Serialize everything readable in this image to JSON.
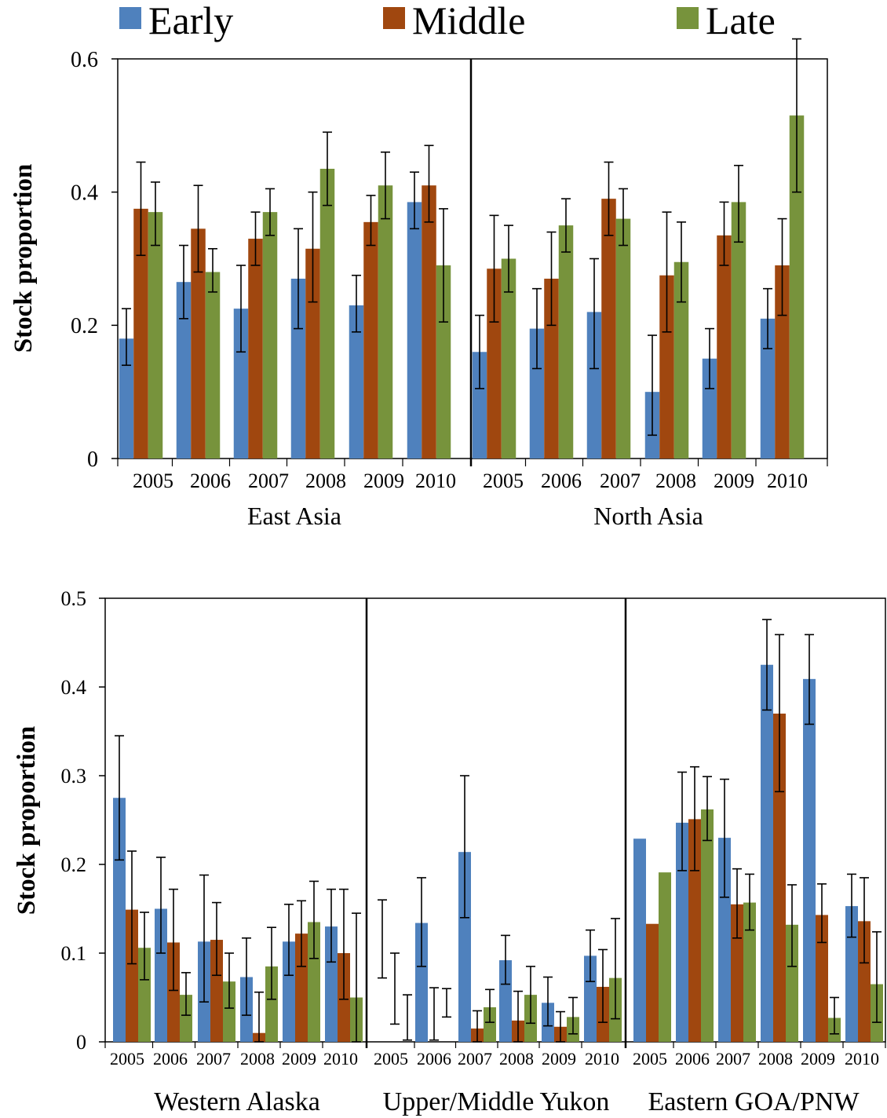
{
  "legend": [
    {
      "name": "Early",
      "color": "#4F81BD"
    },
    {
      "name": "Middle",
      "color": "#A0470F"
    },
    {
      "name": "Late",
      "color": "#77933C"
    }
  ],
  "chart_data": [
    {
      "type": "bar",
      "ylabel": "Stock proportion",
      "ylim": [
        0,
        0.6
      ],
      "yticks": [
        "0",
        "0.2",
        "0.4",
        "0.6"
      ],
      "grid": false,
      "legend_position": "top",
      "groups": [
        {
          "label": "East Asia",
          "categories": [
            "2005",
            "2006",
            "2007",
            "2008",
            "2009",
            "2010"
          ],
          "series": [
            {
              "name": "Early",
              "values": [
                0.18,
                0.265,
                0.225,
                0.27,
                0.23,
                0.385
              ],
              "err_low": [
                0.14,
                0.21,
                0.16,
                0.195,
                0.19,
                0.345
              ],
              "err_high": [
                0.225,
                0.32,
                0.29,
                0.345,
                0.275,
                0.43
              ]
            },
            {
              "name": "Middle",
              "values": [
                0.375,
                0.345,
                0.33,
                0.315,
                0.355,
                0.41
              ],
              "err_low": [
                0.305,
                0.28,
                0.29,
                0.235,
                0.32,
                0.355
              ],
              "err_high": [
                0.445,
                0.41,
                0.37,
                0.4,
                0.395,
                0.47
              ]
            },
            {
              "name": "Late",
              "values": [
                0.37,
                0.28,
                0.37,
                0.435,
                0.41,
                0.29
              ],
              "err_low": [
                0.32,
                0.25,
                0.335,
                0.38,
                0.36,
                0.205
              ],
              "err_high": [
                0.415,
                0.315,
                0.405,
                0.49,
                0.46,
                0.375
              ]
            }
          ]
        },
        {
          "label": "North Asia",
          "categories": [
            "2005",
            "2006",
            "2007",
            "2008",
            "2009",
            "2010"
          ],
          "series": [
            {
              "name": "Early",
              "values": [
                0.16,
                0.195,
                0.22,
                0.1,
                0.15,
                0.21
              ],
              "err_low": [
                0.105,
                0.135,
                0.135,
                0.035,
                0.105,
                0.165
              ],
              "err_high": [
                0.215,
                0.255,
                0.3,
                0.185,
                0.195,
                0.255
              ]
            },
            {
              "name": "Middle",
              "values": [
                0.285,
                0.27,
                0.39,
                0.275,
                0.335,
                0.29
              ],
              "err_low": [
                0.205,
                0.2,
                0.335,
                0.19,
                0.29,
                0.215
              ],
              "err_high": [
                0.365,
                0.34,
                0.445,
                0.37,
                0.385,
                0.36
              ]
            },
            {
              "name": "Late",
              "values": [
                0.3,
                0.35,
                0.36,
                0.295,
                0.385,
                0.515
              ],
              "err_low": [
                0.25,
                0.31,
                0.32,
                0.235,
                0.325,
                0.4
              ],
              "err_high": [
                0.35,
                0.39,
                0.405,
                0.355,
                0.44,
                0.63
              ]
            }
          ]
        }
      ]
    },
    {
      "type": "bar",
      "ylabel": "Stock proportion",
      "ylim": [
        0,
        0.5
      ],
      "yticks": [
        "0",
        "0.1",
        "0.2",
        "0.3",
        "0.4",
        "0.5"
      ],
      "grid": false,
      "groups": [
        {
          "label": "Western Alaska",
          "categories": [
            "2005",
            "2006",
            "2007",
            "2008",
            "2009",
            "2010"
          ],
          "series": [
            {
              "name": "Early",
              "values": [
                0.275,
                0.15,
                0.113,
                0.073,
                0.113,
                0.13
              ],
              "err_low": [
                0.205,
                0.1,
                0.045,
                0.03,
                0.075,
                0.09
              ],
              "err_high": [
                0.345,
                0.208,
                0.188,
                0.117,
                0.155,
                0.172
              ]
            },
            {
              "name": "Middle",
              "values": [
                0.149,
                0.112,
                0.115,
                0.01,
                0.122,
                0.1
              ],
              "err_low": [
                0.088,
                0.058,
                0.075,
                0.0,
                0.085,
                0.048
              ],
              "err_high": [
                0.215,
                0.172,
                0.157,
                0.056,
                0.159,
                0.172
              ]
            },
            {
              "name": "Late",
              "values": [
                0.106,
                0.053,
                0.068,
                0.085,
                0.135,
                0.05
              ],
              "err_low": [
                0.07,
                0.03,
                0.038,
                0.048,
                0.094,
                0.0
              ],
              "err_high": [
                0.146,
                0.078,
                0.1,
                0.129,
                0.181,
                0.145
              ]
            }
          ]
        },
        {
          "label": "Upper/Middle Yukon",
          "categories": [
            "2005",
            "2006",
            "2007",
            "2008",
            "2009",
            "2010"
          ],
          "series": [
            {
              "name": "Early",
              "values": [
                0.0,
                0.134,
                0.214,
                0.092,
                0.044,
                0.097
              ],
              "err_low": [
                0.072,
                0.085,
                0.14,
                0.065,
                0.018,
                0.068
              ],
              "err_high": [
                0.16,
                0.185,
                0.3,
                0.12,
                0.073,
                0.126
              ]
            },
            {
              "name": "Middle",
              "values": [
                0.0,
                0.0,
                0.015,
                0.024,
                0.017,
                0.062
              ],
              "err_low": [
                0.02,
                0.002,
                0.0,
                0.0,
                0.0,
                0.022
              ],
              "err_high": [
                0.1,
                0.061,
                0.035,
                0.057,
                0.034,
                0.104
              ]
            },
            {
              "name": "Late",
              "values": [
                0.0,
                0.0,
                0.039,
                0.053,
                0.028,
                0.072
              ],
              "err_low": [
                0.002,
                0.028,
                0.022,
                0.021,
                0.009,
                0.026
              ],
              "err_high": [
                0.053,
                0.06,
                0.059,
                0.085,
                0.05,
                0.139
              ]
            }
          ]
        },
        {
          "label": "Eastern GOA/PNW",
          "categories": [
            "2005",
            "2006",
            "2007",
            "2008",
            "2009",
            "2010"
          ],
          "series": [
            {
              "name": "Early",
              "values": [
                0.229,
                0.247,
                0.23,
                0.425,
                0.409,
                0.153
              ],
              "err_low": [
                null,
                0.193,
                0.163,
                0.374,
                0.358,
                0.118
              ],
              "err_high": [
                null,
                0.304,
                0.296,
                0.476,
                0.459,
                0.189
              ]
            },
            {
              "name": "Middle",
              "values": [
                0.133,
                0.251,
                0.155,
                0.37,
                0.143,
                0.136
              ],
              "err_low": [
                null,
                0.193,
                0.117,
                0.282,
                0.112,
                0.089
              ],
              "err_high": [
                null,
                0.31,
                0.195,
                0.459,
                0.178,
                0.185
              ]
            },
            {
              "name": "Late",
              "values": [
                0.191,
                0.262,
                0.157,
                0.132,
                0.027,
                0.065
              ],
              "err_low": [
                null,
                0.227,
                0.126,
                0.085,
                0.009,
                0.022
              ],
              "err_high": [
                null,
                0.299,
                0.189,
                0.177,
                0.05,
                0.124
              ]
            }
          ]
        }
      ]
    }
  ]
}
